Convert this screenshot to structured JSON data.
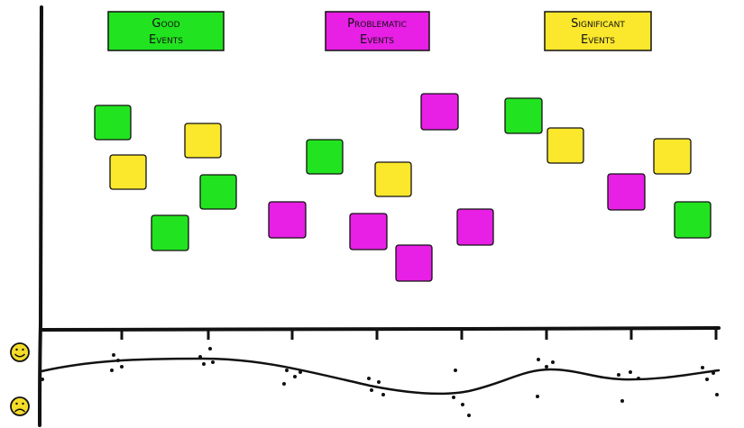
{
  "colors": {
    "good": "#22e31f",
    "problematic": "#e81fe5",
    "significant": "#fbe72c",
    "ink": "#111111",
    "face": "#f5dc2a"
  },
  "legend": [
    {
      "key": "good",
      "line1": "Good",
      "line2": "Events"
    },
    {
      "key": "problematic",
      "line1": "Problematic",
      "line2": "Events"
    },
    {
      "key": "significant",
      "line1": "Significant",
      "line2": "Events"
    }
  ],
  "notes": [
    {
      "kind": "good"
    },
    {
      "kind": "significant"
    },
    {
      "kind": "significant"
    },
    {
      "kind": "good"
    },
    {
      "kind": "good"
    },
    {
      "kind": "problematic"
    },
    {
      "kind": "good"
    },
    {
      "kind": "significant"
    },
    {
      "kind": "problematic"
    },
    {
      "kind": "problematic"
    },
    {
      "kind": "problematic"
    },
    {
      "kind": "problematic"
    },
    {
      "kind": "good"
    },
    {
      "kind": "significant"
    },
    {
      "kind": "problematic"
    },
    {
      "kind": "significant"
    },
    {
      "kind": "good"
    }
  ],
  "mood_scale": {
    "top_icon": "happy-face-icon",
    "bottom_icon": "sad-face-icon"
  },
  "timeline": {
    "tick_count": 8
  }
}
